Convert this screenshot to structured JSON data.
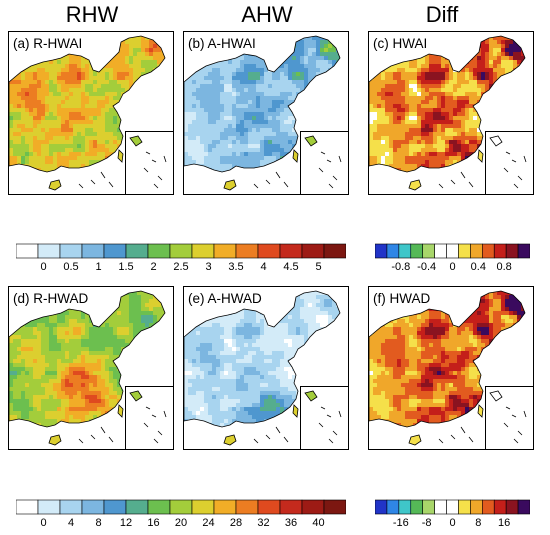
{
  "columns": [
    {
      "id": "rhw",
      "header": "RHW"
    },
    {
      "id": "ahw",
      "header": "AHW"
    },
    {
      "id": "diff",
      "header": "Diff"
    }
  ],
  "panels": [
    {
      "id": "a",
      "label": "(a) R-HWAI",
      "palette": "seq",
      "mode": "rhwai"
    },
    {
      "id": "b",
      "label": "(b) A-HWAI",
      "palette": "seq",
      "mode": "ahwai"
    },
    {
      "id": "c",
      "label": "(c) HWAI",
      "palette": "div",
      "mode": "dhwai"
    },
    {
      "id": "d",
      "label": "(d) R-HWAD",
      "palette": "seq",
      "mode": "rhwad"
    },
    {
      "id": "e",
      "label": "(e) A-HWAD",
      "palette": "seq",
      "mode": "ahwad"
    },
    {
      "id": "f",
      "label": "(f) HWAD",
      "palette": "div",
      "mode": "dhwad"
    }
  ],
  "colorbars": {
    "top_seq": {
      "ticks": [
        "0",
        "0.5",
        "1",
        "1.5",
        "2",
        "2.5",
        "3",
        "3.5",
        "4",
        "4.5",
        "5"
      ]
    },
    "top_div": {
      "ticks": [
        "-0.8",
        "-0.4",
        "0",
        "0.4",
        "0.8"
      ]
    },
    "bottom_seq": {
      "ticks": [
        "0",
        "4",
        "8",
        "12",
        "16",
        "20",
        "24",
        "28",
        "32",
        "36",
        "40"
      ]
    },
    "bottom_div": {
      "ticks": [
        "-16",
        "-8",
        "0",
        "8",
        "16"
      ]
    }
  },
  "colors": {
    "seq": [
      "#ffffff",
      "#d3ebf8",
      "#a8d4ef",
      "#7cb6e0",
      "#4f97cf",
      "#55ad8e",
      "#6cbf4f",
      "#a3cd3b",
      "#dccf2f",
      "#f1ad27",
      "#ec7d22",
      "#df4a1f",
      "#c42a1d",
      "#9d1b15",
      "#7c1711"
    ],
    "div": [
      "#2134c8",
      "#2f86e6",
      "#3fc6c9",
      "#55b957",
      "#a8d66a",
      "#ffffff",
      "#ffffff",
      "#f5e04a",
      "#f0a72a",
      "#e25b1f",
      "#c41f1a",
      "#8a1320",
      "#3a0a5e"
    ]
  }
}
